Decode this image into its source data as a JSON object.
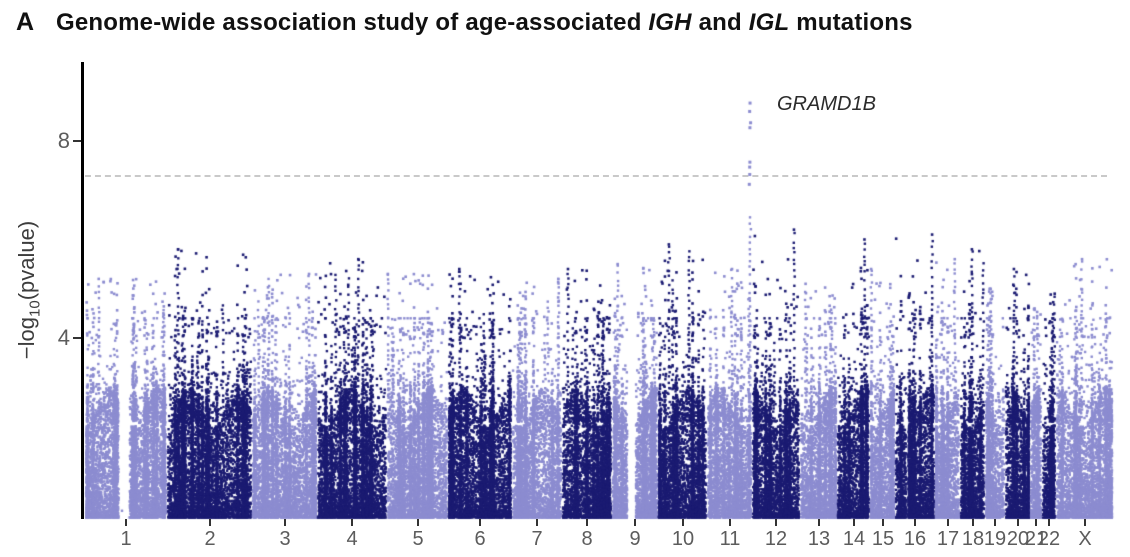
{
  "panel": {
    "label": "A"
  },
  "title": {
    "prefix": "Genome-wide association study of age-associated ",
    "gene1": "IGH",
    "mid": " and ",
    "gene2": "IGL",
    "suffix": " mutations"
  },
  "colors": {
    "point_light": "#8c8cd0",
    "point_dark": "#1b1b72",
    "threshold_line": "#c9c9c9",
    "axis_line": "#000000",
    "tick_text": "#5c5c5c",
    "title_text": "#111111",
    "annotation_text": "#2b2b2b"
  },
  "chart_data": {
    "type": "scatter",
    "subtype": "manhattan",
    "title": "Genome-wide association study of age-associated IGH and IGL mutations",
    "ylabel_parts": {
      "prefix": "−log",
      "sub": "10",
      "suffix": "(pvalue)"
    },
    "yticks": [
      4,
      8
    ],
    "ylim_displayed": [
      0.35,
      9.6
    ],
    "significance_threshold": 7.3,
    "grid": false,
    "legend": "none",
    "annotation": {
      "text": "GRAMD1B",
      "chromosome": "11",
      "position_frac": 0.955,
      "points_neg_log10_p": [
        8.77,
        8.6,
        8.37,
        8.27,
        7.57,
        7.47,
        7.32,
        7.12
      ],
      "subthreshold_tower_top": 6.45
    },
    "x_axis_categories": [
      "1",
      "2",
      "3",
      "4",
      "5",
      "6",
      "7",
      "8",
      "9",
      "10",
      "11",
      "12",
      "13",
      "14",
      "15",
      "16",
      "17",
      "18",
      "19",
      "20",
      "21",
      "22",
      "X"
    ],
    "chromosomes": [
      {
        "label": "1",
        "rel_width": 82,
        "shade": "light",
        "max_bg": 5.2,
        "gap": [
          0.41,
          0.545
        ]
      },
      {
        "label": "2",
        "rel_width": 85,
        "shade": "dark",
        "max_bg": 5.8
      },
      {
        "label": "3",
        "rel_width": 65,
        "shade": "light",
        "max_bg": 5.3
      },
      {
        "label": "4",
        "rel_width": 70,
        "shade": "dark",
        "max_bg": 5.6
      },
      {
        "label": "5",
        "rel_width": 61,
        "shade": "light",
        "max_bg": 5.3
      },
      {
        "label": "6",
        "rel_width": 64,
        "shade": "dark",
        "max_bg": 5.4
      },
      {
        "label": "7",
        "rel_width": 50,
        "shade": "light",
        "max_bg": 5.2
      },
      {
        "label": "8",
        "rel_width": 50,
        "shade": "dark",
        "max_bg": 5.4
      },
      {
        "label": "9",
        "rel_width": 46,
        "shade": "light",
        "max_bg": 5.5,
        "gap": [
          0.33,
          0.52
        ]
      },
      {
        "label": "10",
        "rel_width": 49,
        "shade": "dark",
        "max_bg": 5.9
      },
      {
        "label": "11",
        "rel_width": 45,
        "shade": "light",
        "max_bg": 5.4
      },
      {
        "label": "12",
        "rel_width": 48,
        "shade": "dark",
        "max_bg": 6.2
      },
      {
        "label": "13",
        "rel_width": 37,
        "shade": "light",
        "max_bg": 5.1
      },
      {
        "label": "14",
        "rel_width": 33,
        "shade": "dark",
        "max_bg": 6.0
      },
      {
        "label": "15",
        "rel_width": 25,
        "shade": "light",
        "max_bg": 5.4
      },
      {
        "label": "16",
        "rel_width": 40,
        "shade": "dark",
        "max_bg": 6.1,
        "gap": [
          0.28,
          0.33
        ]
      },
      {
        "label": "17",
        "rel_width": 25,
        "shade": "light",
        "max_bg": 5.6
      },
      {
        "label": "18",
        "rel_width": 25,
        "shade": "dark",
        "max_bg": 5.8
      },
      {
        "label": "19",
        "rel_width": 20,
        "shade": "light",
        "max_bg": 5.0
      },
      {
        "label": "20",
        "rel_width": 25,
        "shade": "dark",
        "max_bg": 5.4
      },
      {
        "label": "21",
        "rel_width": 12,
        "shade": "light",
        "max_bg": 4.6
      },
      {
        "label": "22",
        "rel_width": 14,
        "shade": "dark",
        "max_bg": 4.9
      },
      {
        "label": "X",
        "rel_width": 57,
        "shade": "light",
        "max_bg": 5.6
      }
    ]
  }
}
